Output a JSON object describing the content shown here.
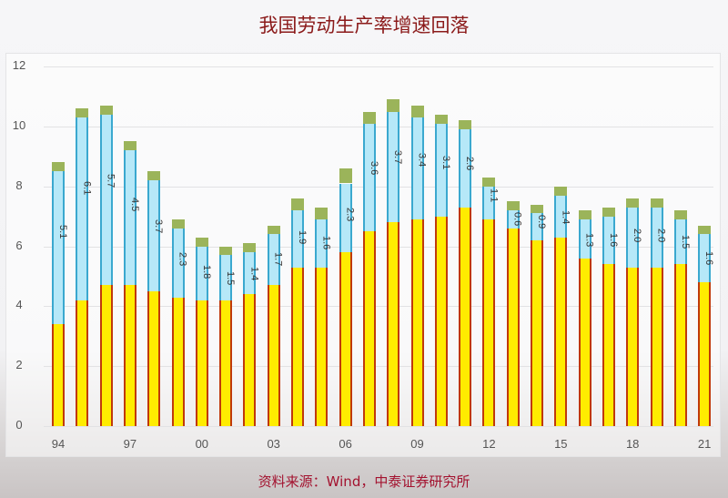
{
  "title": "我国劳动生产率增速回落",
  "source": "资料来源：Wind，中泰证券研究所",
  "colors": {
    "base": "#ffec00",
    "base_border": "#c0390b",
    "mid": "#b6e8f8",
    "mid_border": "#3aa8cf",
    "cap": "#9bb45a",
    "title": "#8b1a1a",
    "source": "#a3122f"
  },
  "y_ticks": [
    "0",
    "2",
    "4",
    "6",
    "8",
    "10",
    "12"
  ],
  "x_ticks": [
    "94",
    "97",
    "00",
    "03",
    "06",
    "09",
    "12",
    "15",
    "18",
    "21"
  ],
  "chart_data": {
    "type": "bar",
    "stacked": true,
    "title": "我国劳动生产率增速回落",
    "xlabel": "",
    "ylabel": "",
    "ylim": [
      0,
      12
    ],
    "grid": true,
    "categories": [
      "94",
      "95",
      "96",
      "97",
      "98",
      "99",
      "00",
      "01",
      "02",
      "03",
      "04",
      "05",
      "06",
      "07",
      "08",
      "09",
      "10",
      "11",
      "12",
      "13",
      "14",
      "15",
      "16",
      "17",
      "18",
      "19",
      "20",
      "21"
    ],
    "series": [
      {
        "name": "base (yellow)",
        "values": [
          3.4,
          4.2,
          4.7,
          4.7,
          4.5,
          4.3,
          4.2,
          4.2,
          4.4,
          4.7,
          5.3,
          5.3,
          5.8,
          6.5,
          6.8,
          6.9,
          7.0,
          7.3,
          6.9,
          6.6,
          6.2,
          6.3,
          5.6,
          5.4,
          5.3,
          5.3,
          5.4,
          4.8
        ]
      },
      {
        "name": "labeled segment (blue)",
        "values": [
          5.1,
          6.1,
          5.7,
          4.5,
          3.7,
          2.3,
          1.8,
          1.5,
          1.4,
          1.7,
          1.9,
          1.6,
          2.3,
          3.6,
          3.7,
          3.4,
          3.1,
          2.6,
          1.1,
          0.6,
          0.9,
          1.4,
          1.3,
          1.6,
          2.0,
          2.0,
          1.5,
          1.6
        ]
      },
      {
        "name": "cap (green)",
        "values": [
          0.3,
          0.3,
          0.3,
          0.3,
          0.3,
          0.3,
          0.3,
          0.3,
          0.3,
          0.3,
          0.4,
          0.4,
          0.5,
          0.4,
          0.4,
          0.4,
          0.3,
          0.3,
          0.3,
          0.3,
          0.3,
          0.3,
          0.3,
          0.3,
          0.3,
          0.3,
          0.3,
          0.3
        ]
      }
    ],
    "labels": [
      "5.1",
      "6.1",
      "5.7",
      "4.5",
      "3.7",
      "2.3",
      "1.8",
      "1.5",
      "1.4",
      "1.7",
      "1.9",
      "1.6",
      "2.3",
      "3.6",
      "3.7",
      "3.4",
      "3.1",
      "2.6",
      "1.1",
      "0.6",
      "0.9",
      "1.4",
      "1.3",
      "1.6",
      "2.0",
      "2.0",
      "1.5",
      "1.6"
    ]
  }
}
